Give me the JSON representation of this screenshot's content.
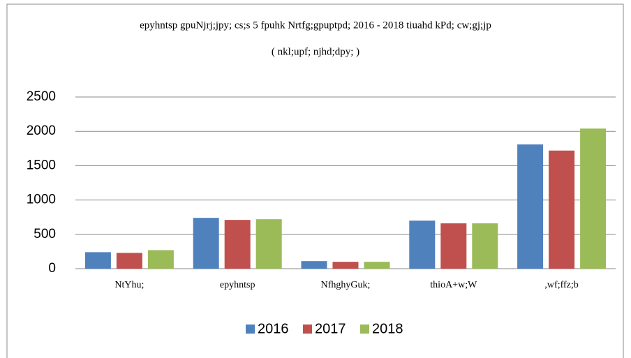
{
  "chart_data": {
    "type": "bar",
    "title": "epyhntsp gpuNjrj;jpy; cs;s 5 fpuhk Nrtfg;gpuptpd; 2016 - 2018 tiuahd kPd; cw;gj;jp",
    "subtitle": "( nkl;upf; njhd;dpy; )",
    "categories": [
      "NtYhu;",
      "epyhntsp",
      "NfhghyGuk;",
      "thioA+w;W",
      ",wf;ffz;b"
    ],
    "series": [
      {
        "name": "2016",
        "color": "#4f81bd",
        "values": [
          240,
          740,
          110,
          700,
          1810
        ]
      },
      {
        "name": "2017",
        "color": "#c0504d",
        "values": [
          230,
          710,
          100,
          660,
          1720
        ]
      },
      {
        "name": "2018",
        "color": "#9bbb59",
        "values": [
          270,
          720,
          100,
          660,
          2040
        ]
      }
    ],
    "ylim": [
      0,
      2500
    ],
    "yticks": [
      0,
      500,
      1000,
      1500,
      2000,
      2500
    ],
    "grid": true,
    "legend": "bottom"
  }
}
